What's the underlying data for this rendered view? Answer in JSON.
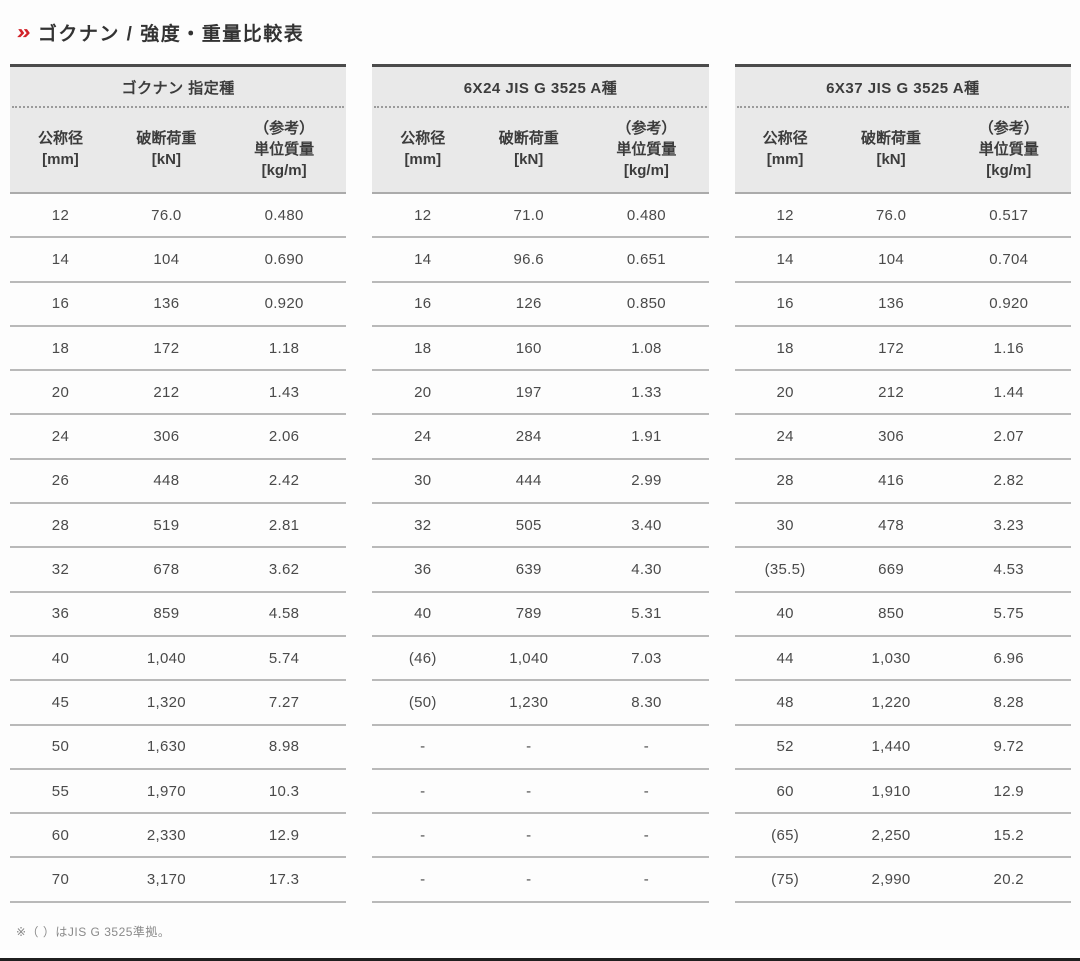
{
  "page": {
    "title": "ゴクナン / 強度・重量比較表",
    "chevron_icon": "»",
    "footnote": "※（ ）はJIS G 3525準拠。"
  },
  "colors": {
    "accent_red": "#d2232a",
    "header_bg": "#e9e9e9",
    "header_top_border": "#4b4b4b",
    "row_divider": "#b9b9b9",
    "text": "#4a4a4a"
  },
  "columns": {
    "c1_label": "公称径",
    "c1_unit": "[mm]",
    "c2_label": "破断荷重",
    "c2_unit": "[kN]",
    "c3_ref": "（参考）",
    "c3_label": "単位質量",
    "c3_unit": "[kg/m]"
  },
  "tables": [
    {
      "title": "ゴクナン 指定種",
      "rows": [
        [
          "12",
          "76.0",
          "0.480"
        ],
        [
          "14",
          "104",
          "0.690"
        ],
        [
          "16",
          "136",
          "0.920"
        ],
        [
          "18",
          "172",
          "1.18"
        ],
        [
          "20",
          "212",
          "1.43"
        ],
        [
          "24",
          "306",
          "2.06"
        ],
        [
          "26",
          "448",
          "2.42"
        ],
        [
          "28",
          "519",
          "2.81"
        ],
        [
          "32",
          "678",
          "3.62"
        ],
        [
          "36",
          "859",
          "4.58"
        ],
        [
          "40",
          "1,040",
          "5.74"
        ],
        [
          "45",
          "1,320",
          "7.27"
        ],
        [
          "50",
          "1,630",
          "8.98"
        ],
        [
          "55",
          "1,970",
          "10.3"
        ],
        [
          "60",
          "2,330",
          "12.9"
        ],
        [
          "70",
          "3,170",
          "17.3"
        ]
      ]
    },
    {
      "title": "6X24 JIS G 3525 A種",
      "rows": [
        [
          "12",
          "71.0",
          "0.480"
        ],
        [
          "14",
          "96.6",
          "0.651"
        ],
        [
          "16",
          "126",
          "0.850"
        ],
        [
          "18",
          "160",
          "1.08"
        ],
        [
          "20",
          "197",
          "1.33"
        ],
        [
          "24",
          "284",
          "1.91"
        ],
        [
          "30",
          "444",
          "2.99"
        ],
        [
          "32",
          "505",
          "3.40"
        ],
        [
          "36",
          "639",
          "4.30"
        ],
        [
          "40",
          "789",
          "5.31"
        ],
        [
          "(46)",
          "1,040",
          "7.03"
        ],
        [
          "(50)",
          "1,230",
          "8.30"
        ],
        [
          "-",
          "-",
          "-"
        ],
        [
          "-",
          "-",
          "-"
        ],
        [
          "-",
          "-",
          "-"
        ],
        [
          "-",
          "-",
          "-"
        ]
      ]
    },
    {
      "title": "6X37 JIS G 3525 A種",
      "rows": [
        [
          "12",
          "76.0",
          "0.517"
        ],
        [
          "14",
          "104",
          "0.704"
        ],
        [
          "16",
          "136",
          "0.920"
        ],
        [
          "18",
          "172",
          "1.16"
        ],
        [
          "20",
          "212",
          "1.44"
        ],
        [
          "24",
          "306",
          "2.07"
        ],
        [
          "28",
          "416",
          "2.82"
        ],
        [
          "30",
          "478",
          "3.23"
        ],
        [
          "(35.5)",
          "669",
          "4.53"
        ],
        [
          "40",
          "850",
          "5.75"
        ],
        [
          "44",
          "1,030",
          "6.96"
        ],
        [
          "48",
          "1,220",
          "8.28"
        ],
        [
          "52",
          "1,440",
          "9.72"
        ],
        [
          "60",
          "1,910",
          "12.9"
        ],
        [
          "(65)",
          "2,250",
          "15.2"
        ],
        [
          "(75)",
          "2,990",
          "20.2"
        ]
      ]
    }
  ]
}
